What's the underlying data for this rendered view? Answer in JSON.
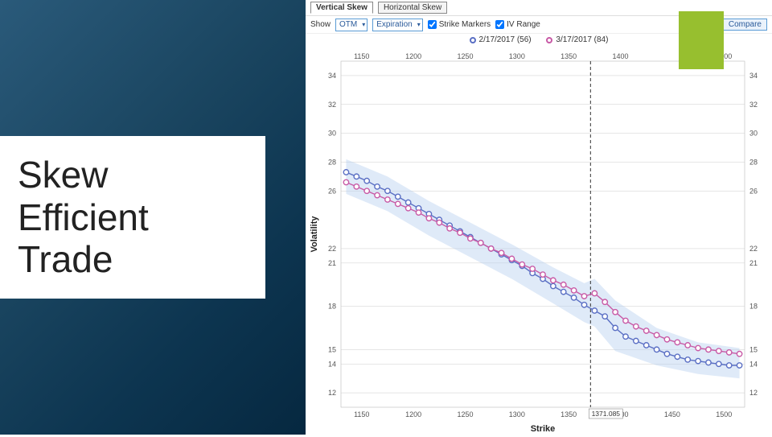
{
  "slide": {
    "title": "Skew Efficient Trade"
  },
  "tabs": {
    "vertical": "Vertical Skew",
    "horizontal": "Horizontal Skew"
  },
  "toolbar": {
    "showLabel": "Show",
    "showValue": "OTM",
    "expirationLabel": "Expiration",
    "strikeMarkersLabel": "Strike Markers",
    "ivRangeLabel": "IV Range",
    "compareLabel": "Compare"
  },
  "legend": {
    "series1": {
      "label": "2/17/2017 (56)",
      "color": "#5a6fc4"
    },
    "series2": {
      "label": "3/17/2017 (84)",
      "color": "#c85aa6"
    }
  },
  "accent": {
    "green": "#97bf2f"
  },
  "chart": {
    "type": "line",
    "xlabel": "Strike",
    "ylabel": "Volatility",
    "background": "#ffffff",
    "gridColor": "#cccccc",
    "band_fill": "#b8d0f0",
    "band_opacity": 0.45,
    "xlim": [
      1130,
      1520
    ],
    "ylim": [
      11,
      35
    ],
    "xticks_top": [
      1150,
      1200,
      1250,
      1300,
      1350,
      1400,
      1500
    ],
    "xticks_bottom": [
      1150,
      1200,
      1250,
      1300,
      1350,
      1400,
      1450,
      1500
    ],
    "yticks": [
      12,
      14,
      15,
      18,
      21,
      22,
      26,
      28,
      30,
      32,
      34
    ],
    "vline_x": 1371.085,
    "vline_label": "1371.085",
    "marker_radius": 3.2,
    "line_width": 1.4,
    "series1": {
      "color": "#5a6fc4",
      "x": [
        1135,
        1145,
        1155,
        1165,
        1175,
        1185,
        1195,
        1205,
        1215,
        1225,
        1235,
        1245,
        1255,
        1265,
        1275,
        1285,
        1295,
        1305,
        1315,
        1325,
        1335,
        1345,
        1355,
        1365,
        1375,
        1385,
        1395,
        1405,
        1415,
        1425,
        1435,
        1445,
        1455,
        1465,
        1475,
        1485,
        1495,
        1505,
        1515
      ],
      "y": [
        27.3,
        27.0,
        26.7,
        26.3,
        26.0,
        25.6,
        25.2,
        24.8,
        24.4,
        24.0,
        23.6,
        23.2,
        22.8,
        22.4,
        22.0,
        21.6,
        21.2,
        20.8,
        20.3,
        19.9,
        19.4,
        19.0,
        18.6,
        18.1,
        17.7,
        17.3,
        16.5,
        15.9,
        15.6,
        15.3,
        15.0,
        14.7,
        14.5,
        14.3,
        14.2,
        14.1,
        14.0,
        13.9,
        13.9
      ]
    },
    "series2": {
      "color": "#c85aa6",
      "x": [
        1135,
        1145,
        1155,
        1165,
        1175,
        1185,
        1195,
        1205,
        1215,
        1225,
        1235,
        1245,
        1255,
        1265,
        1275,
        1285,
        1295,
        1305,
        1315,
        1325,
        1335,
        1345,
        1355,
        1365,
        1375,
        1385,
        1395,
        1405,
        1415,
        1425,
        1435,
        1445,
        1455,
        1465,
        1475,
        1485,
        1495,
        1505,
        1515
      ],
      "y": [
        26.6,
        26.3,
        26.0,
        25.7,
        25.4,
        25.1,
        24.8,
        24.5,
        24.1,
        23.8,
        23.4,
        23.1,
        22.7,
        22.4,
        22.0,
        21.7,
        21.3,
        20.9,
        20.6,
        20.2,
        19.8,
        19.5,
        19.1,
        18.7,
        18.9,
        18.3,
        17.6,
        17.0,
        16.6,
        16.3,
        16.0,
        15.7,
        15.5,
        15.3,
        15.1,
        15.0,
        14.9,
        14.8,
        14.7
      ]
    },
    "band_upper": {
      "x": [
        1135,
        1175,
        1215,
        1255,
        1295,
        1335,
        1365,
        1375,
        1395,
        1435,
        1475,
        1515
      ],
      "y": [
        28.2,
        27.0,
        25.3,
        23.8,
        22.3,
        20.7,
        19.6,
        19.9,
        18.4,
        16.5,
        15.5,
        15.1
      ]
    },
    "band_lower": {
      "x": [
        1135,
        1175,
        1215,
        1255,
        1295,
        1335,
        1365,
        1375,
        1395,
        1435,
        1475,
        1515
      ],
      "y": [
        25.8,
        24.6,
        22.9,
        21.4,
        19.9,
        18.2,
        16.9,
        16.6,
        14.9,
        13.9,
        13.3,
        13.0
      ]
    }
  }
}
